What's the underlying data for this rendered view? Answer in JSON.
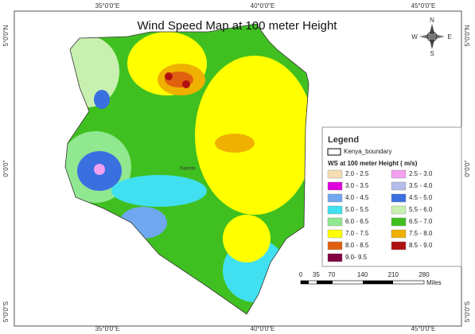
{
  "title": "Wind Speed Map at 100  meter Height",
  "coordinates": {
    "top": [
      "35°0'0\"E",
      "40°0'0\"E",
      "45°0'0\"E"
    ],
    "bottom": [
      "35°0'0\"E",
      "40°0'0\"E",
      "45°0'0\"E"
    ],
    "left": [
      "5°0'0\"N",
      "0°0'0\"",
      "5°0'0\"S"
    ],
    "right": [
      "5°0'0\"N",
      "0°0'0\"",
      "5°0'0\"S"
    ]
  },
  "compass": {
    "north": "N",
    "east": "E",
    "south": "S",
    "west": "W"
  },
  "place_label": "Nairobi",
  "legend": {
    "title": "Legend",
    "boundary": "Kenya_boundary",
    "subtitle": "WS at 100 meter Height ( m/s)",
    "items": [
      {
        "label": "2.0 - 2.5",
        "color": "#f5deb3"
      },
      {
        "label": "2.5 - 3.0",
        "color": "#f3a0f0"
      },
      {
        "label": "3.0 - 3.5",
        "color": "#e000e0"
      },
      {
        "label": "3.5 - 4.0",
        "color": "#b4bce8"
      },
      {
        "label": "4.0 - 4.5",
        "color": "#6fa8f0"
      },
      {
        "label": "4.5 - 5.0",
        "color": "#3a6fe0"
      },
      {
        "label": "5.0 - 5.5",
        "color": "#40e0f0"
      },
      {
        "label": "5.5 - 6.0",
        "color": "#c8f0b0"
      },
      {
        "label": "6.0 - 6.5",
        "color": "#90e890"
      },
      {
        "label": "6.5 - 7.0",
        "color": "#40c020"
      },
      {
        "label": "7.0 - 7.5",
        "color": "#ffff00"
      },
      {
        "label": "7.5 - 8.0",
        "color": "#f0b000"
      },
      {
        "label": "8.0 - 8.5",
        "color": "#e06010"
      },
      {
        "label": "8.5 - 9.0",
        "color": "#b01010"
      },
      {
        "label": "9.0- 9.5",
        "color": "#800040"
      }
    ]
  },
  "scale_bar": {
    "labels": [
      "0",
      "35",
      "70",
      "140",
      "210",
      "280"
    ],
    "unit": "Miles"
  }
}
